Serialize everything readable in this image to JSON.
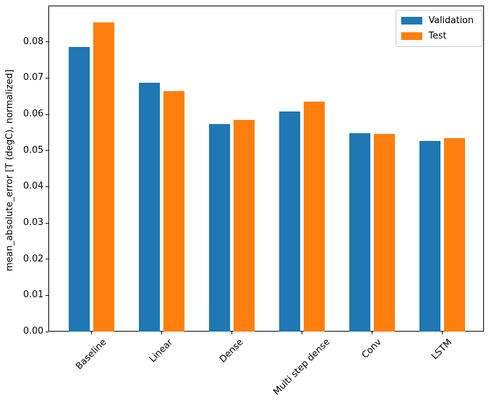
{
  "chart_data": {
    "type": "bar",
    "title": "",
    "categories": [
      "Baseline",
      "Linear",
      "Dense",
      "Multi step dense",
      "Conv",
      "LSTM"
    ],
    "series": [
      {
        "name": "Validation",
        "color": "#1f77b4",
        "values": [
          0.0786,
          0.0688,
          0.0573,
          0.0608,
          0.0547,
          0.0526
        ]
      },
      {
        "name": "Test",
        "color": "#ff7f0e",
        "values": [
          0.0853,
          0.0664,
          0.0584,
          0.0635,
          0.0545,
          0.0535
        ]
      }
    ],
    "xlabel": "",
    "ylabel": "mean_absolute_error [T (degC), normalized]",
    "ylim": [
      0,
      0.09
    ],
    "yticks": [
      "0.00",
      "0.01",
      "0.02",
      "0.03",
      "0.04",
      "0.05",
      "0.06",
      "0.07",
      "0.08"
    ],
    "x_tick_rotation": 45,
    "grid": "off",
    "legend_position": "upper right",
    "colors": {
      "validation": "#1f77b4",
      "test": "#ff7f0e",
      "axis": "#000000",
      "legend_border": "#cccccc"
    }
  }
}
